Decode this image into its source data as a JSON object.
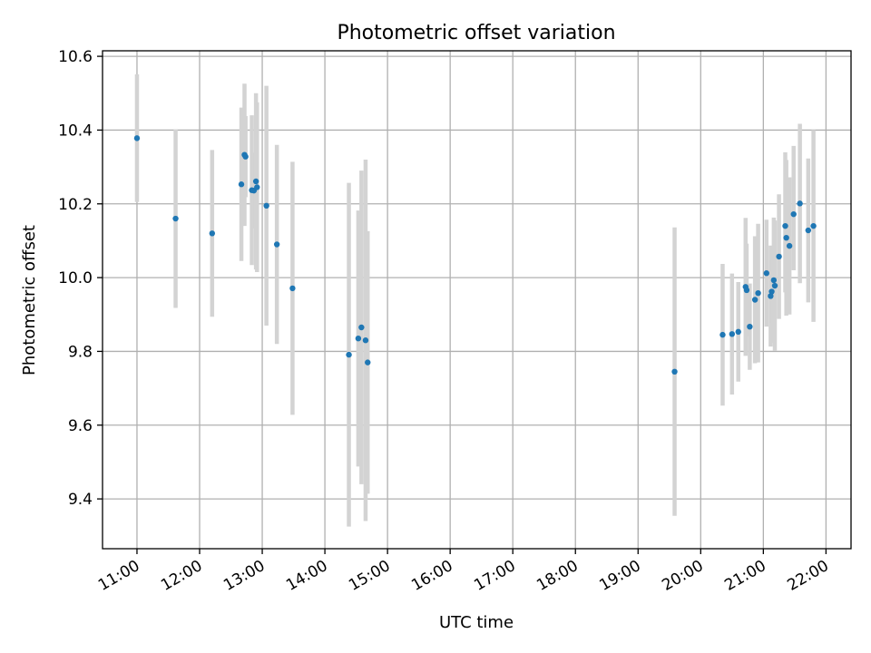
{
  "chart_data": {
    "type": "scatter",
    "title": "Photometric offset variation",
    "xlabel": "UTC time",
    "ylabel": "Photometric offset",
    "x_unit": "hours (UTC)",
    "xlim": [
      10.45,
      22.4
    ],
    "ylim": [
      9.265,
      10.615
    ],
    "x_ticks": [
      11,
      12,
      13,
      14,
      15,
      16,
      17,
      18,
      19,
      20,
      21,
      22
    ],
    "x_tick_labels": [
      "11:00",
      "12:00",
      "13:00",
      "14:00",
      "15:00",
      "16:00",
      "17:00",
      "18:00",
      "19:00",
      "20:00",
      "21:00",
      "22:00"
    ],
    "y_ticks": [
      9.4,
      9.6,
      9.8,
      10.0,
      10.2,
      10.4,
      10.6
    ],
    "y_tick_labels": [
      "9.4",
      "9.6",
      "9.8",
      "10.0",
      "10.2",
      "10.4",
      "10.6"
    ],
    "grid": true,
    "colors": {
      "marker": "#1f77b4",
      "errorbar": "#d3d3d3",
      "grid": "#b0b0b0"
    },
    "points": [
      {
        "t": "11:00",
        "y": 10.378,
        "lo": 10.205,
        "hi": 10.551
      },
      {
        "t": "11:37",
        "y": 10.16,
        "lo": 9.918,
        "hi": 10.402
      },
      {
        "t": "12:12",
        "y": 10.12,
        "lo": 9.894,
        "hi": 10.346
      },
      {
        "t": "12:40",
        "y": 10.253,
        "lo": 10.045,
        "hi": 10.461
      },
      {
        "t": "12:43",
        "y": 10.333,
        "lo": 10.14,
        "hi": 10.526
      },
      {
        "t": "12:44",
        "y": 10.328,
        "lo": 10.218,
        "hi": 10.438
      },
      {
        "t": "12:50",
        "y": 10.237,
        "lo": 10.034,
        "hi": 10.44
      },
      {
        "t": "12:52",
        "y": 10.236,
        "lo": 10.133,
        "hi": 10.339
      },
      {
        "t": "12:54",
        "y": 10.261,
        "lo": 10.022,
        "hi": 10.5
      },
      {
        "t": "12:55",
        "y": 10.245,
        "lo": 10.015,
        "hi": 10.475
      },
      {
        "t": "13:04",
        "y": 10.195,
        "lo": 9.87,
        "hi": 10.52
      },
      {
        "t": "13:14",
        "y": 10.09,
        "lo": 9.82,
        "hi": 10.36
      },
      {
        "t": "13:29",
        "y": 9.971,
        "lo": 9.628,
        "hi": 10.314
      },
      {
        "t": "14:23",
        "y": 9.791,
        "lo": 9.325,
        "hi": 10.257
      },
      {
        "t": "14:32",
        "y": 9.835,
        "lo": 9.488,
        "hi": 10.182
      },
      {
        "t": "14:35",
        "y": 9.865,
        "lo": 9.44,
        "hi": 10.29
      },
      {
        "t": "14:39",
        "y": 9.83,
        "lo": 9.34,
        "hi": 10.32
      },
      {
        "t": "14:41",
        "y": 9.77,
        "lo": 9.414,
        "hi": 10.126
      },
      {
        "t": "19:35",
        "y": 9.745,
        "lo": 9.354,
        "hi": 10.136
      },
      {
        "t": "20:21",
        "y": 9.845,
        "lo": 9.653,
        "hi": 10.037
      },
      {
        "t": "20:30",
        "y": 9.847,
        "lo": 9.683,
        "hi": 10.011
      },
      {
        "t": "20:36",
        "y": 9.853,
        "lo": 9.718,
        "hi": 9.988
      },
      {
        "t": "20:43",
        "y": 9.975,
        "lo": 9.788,
        "hi": 10.162
      },
      {
        "t": "20:44",
        "y": 9.966,
        "lo": 9.84,
        "hi": 10.092
      },
      {
        "t": "20:47",
        "y": 9.867,
        "lo": 9.75,
        "hi": 9.984
      },
      {
        "t": "20:52",
        "y": 9.94,
        "lo": 9.768,
        "hi": 10.112
      },
      {
        "t": "20:55",
        "y": 9.958,
        "lo": 9.77,
        "hi": 10.146
      },
      {
        "t": "21:03",
        "y": 10.012,
        "lo": 9.867,
        "hi": 10.157
      },
      {
        "t": "21:07",
        "y": 9.95,
        "lo": 9.813,
        "hi": 10.087
      },
      {
        "t": "21:08",
        "y": 9.962,
        "lo": 9.876,
        "hi": 10.048
      },
      {
        "t": "21:10",
        "y": 9.993,
        "lo": 9.823,
        "hi": 10.163
      },
      {
        "t": "21:11",
        "y": 9.978,
        "lo": 9.801,
        "hi": 10.155
      },
      {
        "t": "21:15",
        "y": 10.057,
        "lo": 9.888,
        "hi": 10.226
      },
      {
        "t": "21:21",
        "y": 10.14,
        "lo": 9.96,
        "hi": 10.34
      },
      {
        "t": "21:22",
        "y": 10.108,
        "lo": 9.897,
        "hi": 10.319
      },
      {
        "t": "21:25",
        "y": 10.086,
        "lo": 9.9,
        "hi": 10.272
      },
      {
        "t": "21:29",
        "y": 10.172,
        "lo": 10.02,
        "hi": 10.357
      },
      {
        "t": "21:35",
        "y": 10.201,
        "lo": 9.985,
        "hi": 10.417
      },
      {
        "t": "21:43",
        "y": 10.128,
        "lo": 9.933,
        "hi": 10.323
      },
      {
        "t": "21:48",
        "y": 10.14,
        "lo": 9.88,
        "hi": 10.4
      }
    ]
  }
}
